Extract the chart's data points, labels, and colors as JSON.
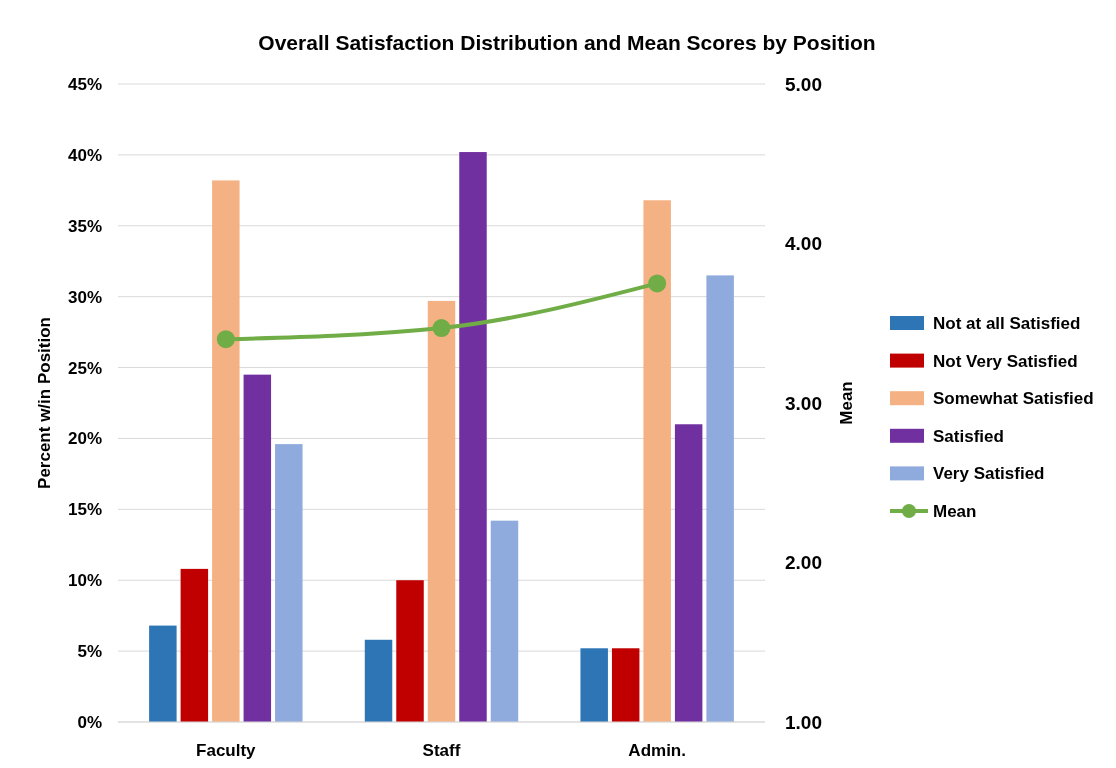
{
  "chart_data": {
    "type": "bar",
    "title": "Overall Satisfaction Distribution and Mean Scores by Position",
    "ylabel": "Percent w/in Position",
    "y2label": "Mean",
    "categories": [
      "Faculty",
      "Staff",
      "Admin."
    ],
    "series": [
      {
        "name": "Not at all Satisfied",
        "color": "#2e75b6",
        "values": [
          6.8,
          5.8,
          5.2
        ]
      },
      {
        "name": "Not Very Satisfied",
        "color": "#c00000",
        "values": [
          10.8,
          10.0,
          5.2
        ]
      },
      {
        "name": "Somewhat Satisfied",
        "color": "#f4b183",
        "values": [
          38.2,
          29.7,
          36.8
        ]
      },
      {
        "name": "Satisfied",
        "color": "#7030a0",
        "values": [
          24.5,
          40.2,
          21.0
        ]
      },
      {
        "name": "Very Satisfied",
        "color": "#8faadc",
        "values": [
          19.6,
          14.2,
          31.5
        ]
      },
      {
        "name": "Mean",
        "type": "line",
        "axis": "y2",
        "color": "#70ad47",
        "values": [
          3.4,
          3.47,
          3.75
        ]
      }
    ],
    "ylim": [
      0,
      45
    ],
    "yticks": [
      {
        "value": 0,
        "label": "0%"
      },
      {
        "value": 5,
        "label": "5%"
      },
      {
        "value": 10,
        "label": "10%"
      },
      {
        "value": 15,
        "label": "15%"
      },
      {
        "value": 20,
        "label": "20%"
      },
      {
        "value": 25,
        "label": "25%"
      },
      {
        "value": 30,
        "label": "30%"
      },
      {
        "value": 35,
        "label": "35%"
      },
      {
        "value": 40,
        "label": "40%"
      },
      {
        "value": 45,
        "label": "45%"
      }
    ],
    "y2lim": [
      1,
      5
    ],
    "y2ticks": [
      {
        "value": 1,
        "label": "1.00"
      },
      {
        "value": 2,
        "label": "2.00"
      },
      {
        "value": 3,
        "label": "3.00"
      },
      {
        "value": 4,
        "label": "4.00"
      },
      {
        "value": 5,
        "label": "5.00"
      }
    ],
    "grid": "y",
    "legend": "right",
    "marker": "circle"
  }
}
